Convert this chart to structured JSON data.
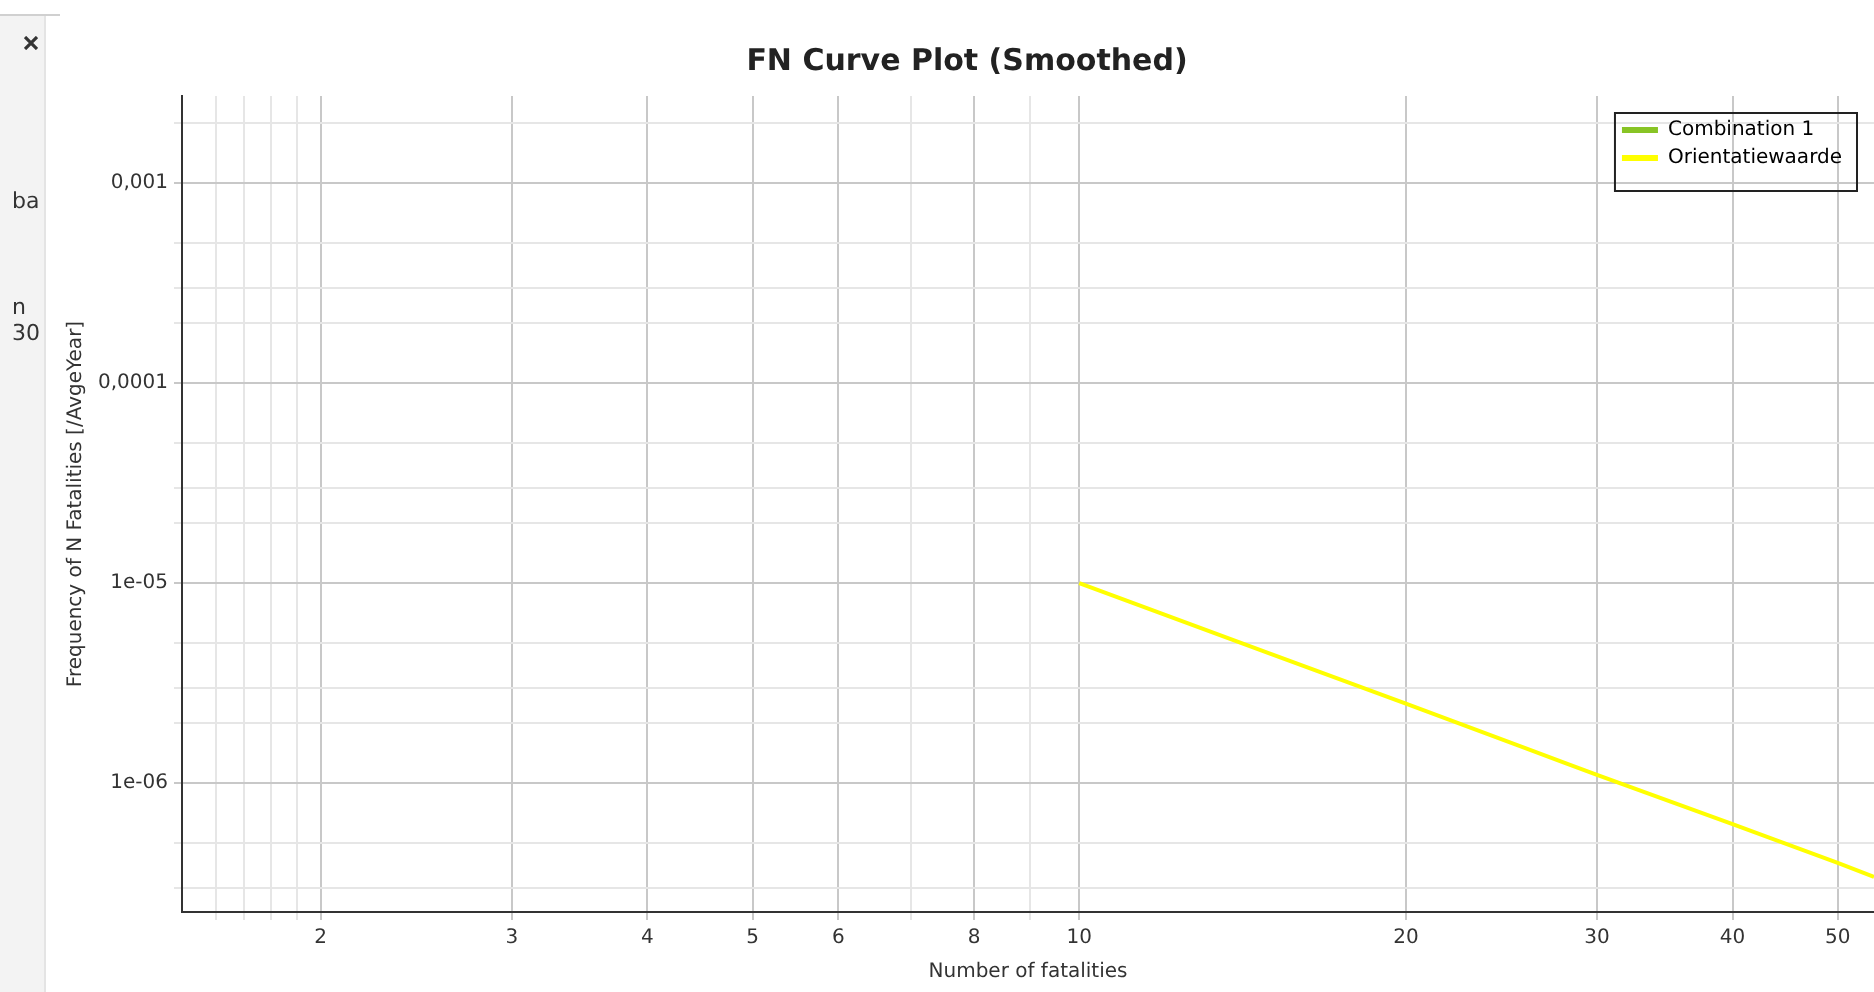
{
  "chart_data": {
    "type": "line",
    "title": "FN Curve Plot (Smoothed)",
    "xlabel": "Number of fatalities",
    "ylabel": "Frequency of N Fatalities [/AvgeYear]",
    "annotations": [
      "ba",
      "n",
      "30"
    ],
    "series": [
      {
        "name": "Combination 1",
        "color": "#88c425"
      },
      {
        "name": "Orientatiewaarde",
        "color": "#ffff00",
        "x": [
          10,
          20,
          30,
          40,
          50,
          54
        ],
        "values": [
          1e-05,
          2.5e-06,
          1.1e-06,
          6.25e-07,
          4e-07,
          3.4e-07
        ]
      }
    ],
    "log": "xy",
    "grid": true,
    "legend": "top right",
    "marker": "none",
    "line_style": "solid",
    "xlim": [
      1.49,
      54
    ],
    "xticks": [
      {
        "value": 1.6,
        "label": null
      },
      {
        "value": 1.7,
        "label": null
      },
      {
        "value": 1.8,
        "label": null
      },
      {
        "value": 1.9,
        "label": null
      },
      2,
      3,
      4,
      5,
      6,
      {
        "value": 7,
        "label": null
      },
      8,
      {
        "value": 9,
        "label": null
      },
      10,
      20,
      30,
      40,
      50
    ],
    "ylim": [
      2.27e-07,
      0.00273
    ],
    "yticks": [
      {
        "value": 3e-07,
        "label": null
      },
      {
        "value": 5e-07,
        "label": null
      },
      {
        "value": 1e-06,
        "label": "1e-06"
      },
      {
        "value": 2e-06,
        "label": null
      },
      {
        "value": 3e-06,
        "label": null
      },
      {
        "value": 5e-06,
        "label": null
      },
      {
        "value": 1e-05,
        "label": "1e-05"
      },
      {
        "value": 2e-05,
        "label": null
      },
      {
        "value": 3e-05,
        "label": null
      },
      {
        "value": 5e-05,
        "label": null
      },
      {
        "value": 0.0001,
        "label": "0,0001"
      },
      {
        "value": 0.0002,
        "label": null
      },
      {
        "value": 0.0003,
        "label": null
      },
      {
        "value": 0.0005,
        "label": null
      },
      {
        "value": 0.001,
        "label": "0,001"
      },
      {
        "value": 0.002,
        "label": null
      }
    ]
  }
}
